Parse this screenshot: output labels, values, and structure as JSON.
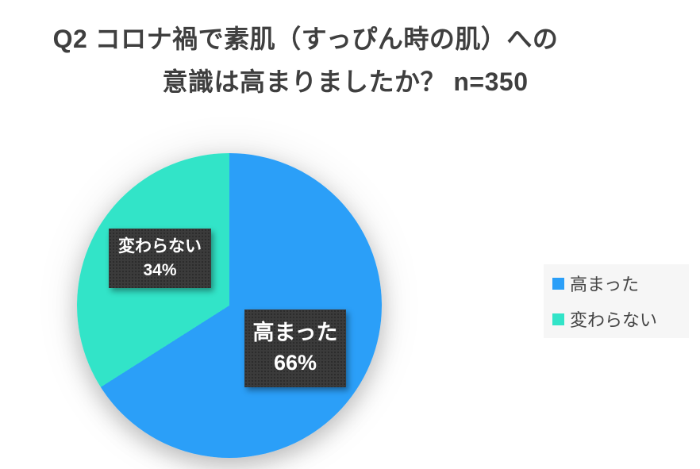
{
  "title": {
    "line1": "Q2 コロナ禍で素肌（すっぴん時の肌）への",
    "line2": "意識は高まりましたか？ n=350"
  },
  "chart_data": {
    "type": "pie",
    "title": "Q2 コロナ禍で素肌（すっぴん時の肌）への意識は高まりましたか？ n=350",
    "n": 350,
    "labels": [
      "高まった",
      "変わらない"
    ],
    "values": [
      66,
      34
    ],
    "percent_labels": [
      "66%",
      "34%"
    ],
    "colors": [
      "#2B9FF8",
      "#32E4C8"
    ],
    "label_box_color": "#3b3b3b",
    "label_text_color": "#ffffff",
    "start_angle_deg": 0,
    "direction": "clockwise",
    "legend_position": "right"
  }
}
